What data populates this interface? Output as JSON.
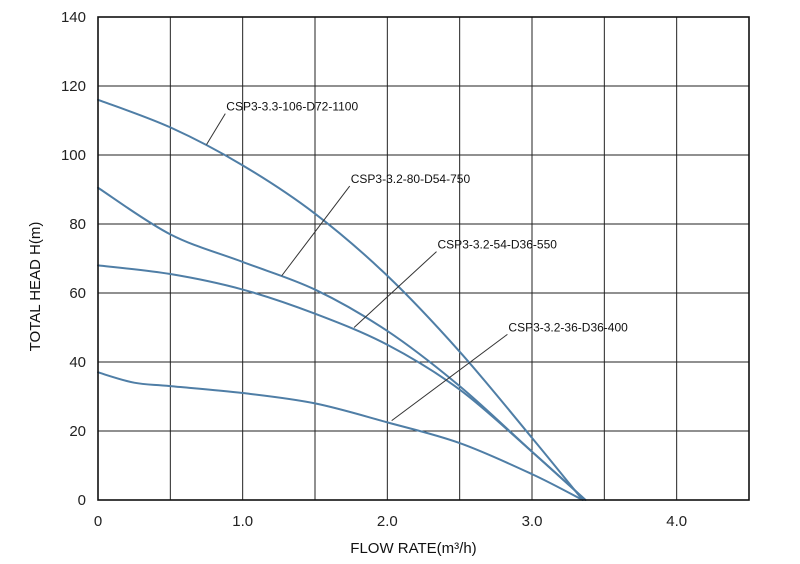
{
  "chart_data": {
    "type": "line",
    "xlabel": "FLOW RATE(m³/h)",
    "ylabel": "TOTAL HEAD H(m)",
    "xlim": [
      0,
      4.5
    ],
    "ylim": [
      0,
      140
    ],
    "x_ticks": [
      "0",
      "1.0",
      "2.0",
      "3.0",
      "4.0"
    ],
    "x_tick_values": [
      0,
      1,
      2,
      3,
      4
    ],
    "y_ticks": [
      "0",
      "20",
      "40",
      "60",
      "80",
      "100",
      "120",
      "140"
    ],
    "y_tick_values": [
      0,
      20,
      40,
      60,
      80,
      100,
      120,
      140
    ],
    "grid": true,
    "colors": {
      "curve": "#4f7ea6",
      "grid": "#222222",
      "leader": "#333333"
    },
    "series": [
      {
        "name": "CSP3-3.3-106-D72-1100",
        "x": [
          0,
          0.5,
          1.0,
          1.5,
          2.0,
          2.5,
          3.0,
          3.35
        ],
        "y": [
          116,
          108,
          97,
          83,
          65,
          43,
          18,
          0
        ],
        "label_anchor": {
          "x": 0.75,
          "y": 103
        },
        "label_at": {
          "x": 0.88,
          "y": 112
        }
      },
      {
        "name": "CSP3-3.2-80-D54-750",
        "x": [
          0,
          0.5,
          1.0,
          1.5,
          2.0,
          2.5,
          3.0,
          3.37
        ],
        "y": [
          90.5,
          77,
          69,
          61,
          49,
          33,
          14,
          0
        ],
        "label_anchor": {
          "x": 1.27,
          "y": 65
        },
        "label_at": {
          "x": 1.74,
          "y": 91
        }
      },
      {
        "name": "CSP3-3.2-54-D36-550",
        "x": [
          0,
          0.5,
          1.0,
          1.5,
          2.0,
          2.5,
          3.0,
          3.37
        ],
        "y": [
          68,
          65.5,
          61,
          54,
          45,
          32,
          14,
          0
        ],
        "label_anchor": {
          "x": 1.77,
          "y": 50
        },
        "label_at": {
          "x": 2.34,
          "y": 72
        }
      },
      {
        "name": "CSP3-3.2-36-D36-400",
        "x": [
          0,
          0.25,
          0.5,
          1.0,
          1.5,
          2.0,
          2.5,
          3.0,
          3.35
        ],
        "y": [
          37,
          34,
          33,
          31,
          28,
          22.5,
          16.5,
          7.5,
          0
        ],
        "label_anchor": {
          "x": 2.03,
          "y": 23
        },
        "label_at": {
          "x": 2.83,
          "y": 48
        }
      }
    ]
  }
}
